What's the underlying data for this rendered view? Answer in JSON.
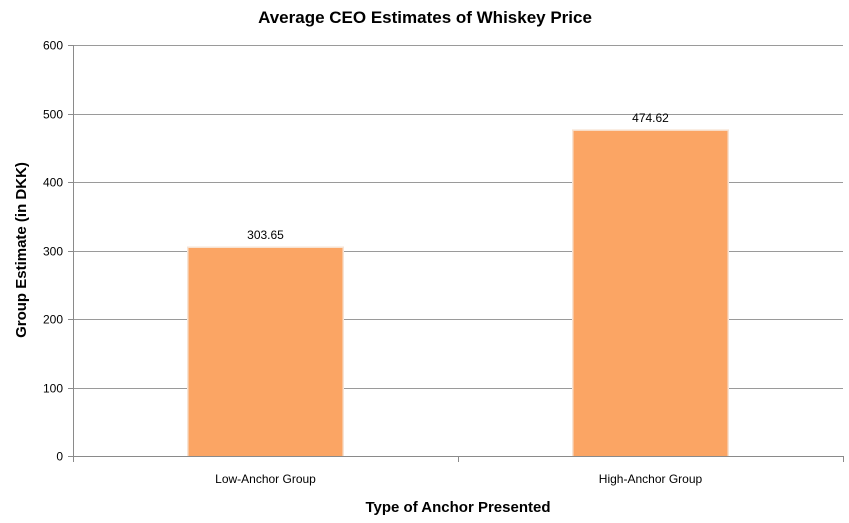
{
  "chart_data": {
    "type": "bar",
    "title": "Average CEO Estimates of Whiskey Price",
    "xlabel": "Type of Anchor Presented",
    "ylabel": "Group Estimate (in DKK)",
    "categories": [
      "Low-Anchor Group",
      "High-Anchor Group"
    ],
    "values": [
      303.65,
      474.62
    ],
    "data_labels": [
      "303.65",
      "474.62"
    ],
    "ylim": [
      0,
      600
    ],
    "yticks": [
      0,
      100,
      200,
      300,
      400,
      500,
      600
    ],
    "ytick_labels": [
      "0",
      "100",
      "200",
      "300",
      "400",
      "500",
      "600"
    ],
    "grid": true,
    "legend": "none",
    "bar_color": "#FBA564",
    "bar_edge_color": "#F7E3D3"
  }
}
